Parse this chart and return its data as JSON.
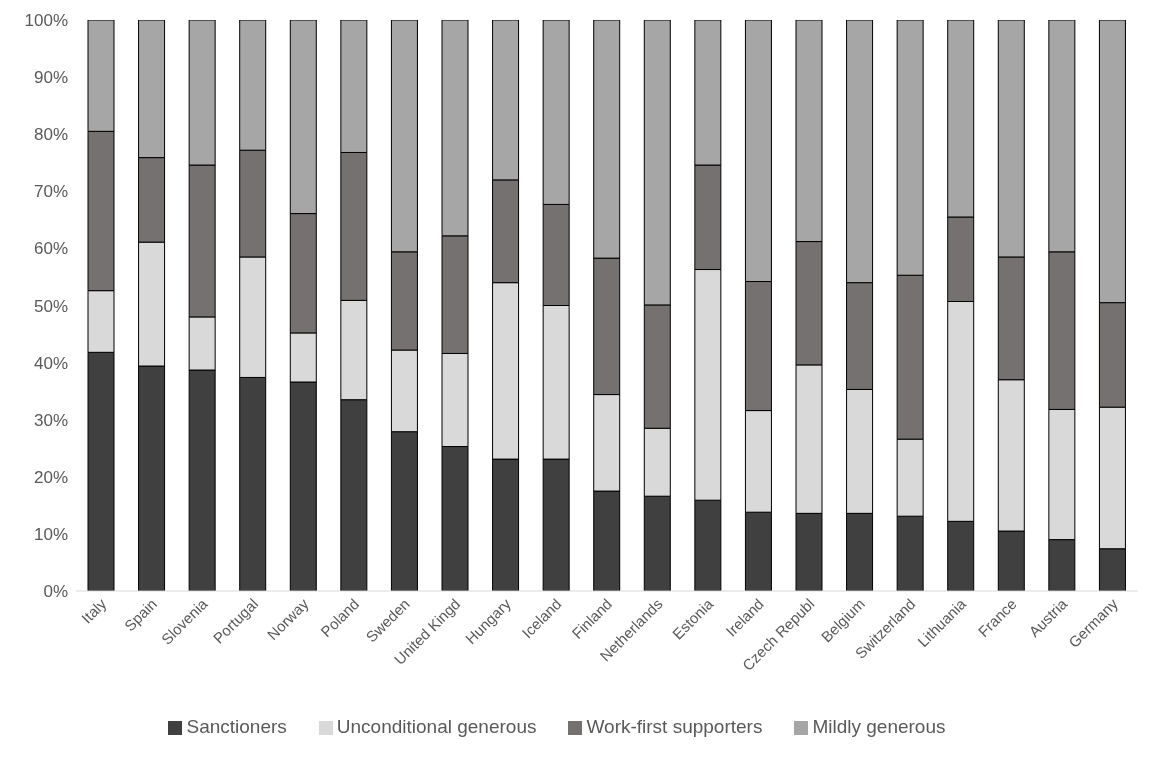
{
  "chart_data": {
    "type": "bar",
    "stacked": true,
    "categories": [
      "Italy",
      "Spain",
      "Slovenia",
      "Portugal",
      "Norway",
      "Poland",
      "Sweden",
      "United Kingd",
      "Hungary",
      "Iceland",
      "Finland",
      "Netherlands",
      "Estonia",
      "Ireland",
      "Czech Republ",
      "Belgium",
      "Switzerland",
      "Lithuania",
      "France",
      "Austria",
      "Germany"
    ],
    "series": [
      {
        "name": "Sanctioners",
        "color": "#404040",
        "values": [
          41.8,
          39.4,
          38.7,
          37.4,
          36.6,
          33.5,
          27.9,
          25.3,
          23.1,
          23.1,
          17.5,
          16.6,
          15.9,
          13.8,
          13.6,
          13.6,
          13.1,
          12.2,
          10.5,
          9,
          7.4
        ]
      },
      {
        "name": "Unconditional generous",
        "color": "#d9d9d9",
        "values": [
          10.8,
          21.7,
          9.3,
          21.1,
          8.6,
          17.4,
          14.3,
          16.3,
          30.9,
          26.9,
          16.9,
          11.9,
          40.4,
          17.8,
          26,
          21.7,
          13.5,
          38.5,
          26.5,
          22.8,
          24.8
        ]
      },
      {
        "name": "Work-first supporters",
        "color": "#767171",
        "values": [
          27.9,
          14.8,
          26.6,
          18.7,
          20.9,
          25.9,
          17.2,
          20.6,
          18,
          17.7,
          23.9,
          21.6,
          18.3,
          22.6,
          21.6,
          18.7,
          28.7,
          14.8,
          21.5,
          27.6,
          18.3
        ]
      },
      {
        "name": "Mildly generous",
        "color": "#a6a6a6",
        "values": [
          19.5,
          24.1,
          25.4,
          22.8,
          33.9,
          23.2,
          40.6,
          37.8,
          28,
          32.3,
          41.7,
          49.9,
          25.4,
          45.8,
          38.8,
          46,
          44.7,
          34.5,
          41.5,
          40.6,
          49.5
        ]
      }
    ],
    "ylim": [
      0,
      100
    ],
    "yticks": [
      {
        "value": 0,
        "label": "0%"
      },
      {
        "value": 10,
        "label": "10%"
      },
      {
        "value": 20,
        "label": "20%"
      },
      {
        "value": 30,
        "label": "30%"
      },
      {
        "value": 40,
        "label": "40%"
      },
      {
        "value": 50,
        "label": "50%"
      },
      {
        "value": 60,
        "label": "60%"
      },
      {
        "value": 70,
        "label": "70%"
      },
      {
        "value": 80,
        "label": "80%"
      },
      {
        "value": 90,
        "label": "90%"
      },
      {
        "value": 100,
        "label": "100%"
      }
    ],
    "grid": false,
    "legend": "bottom"
  }
}
